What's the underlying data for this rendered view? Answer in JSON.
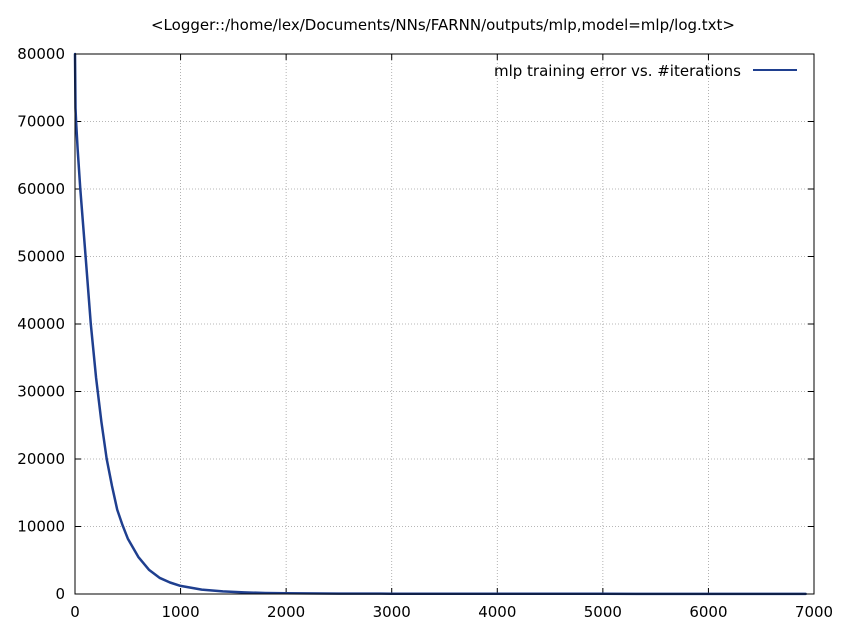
{
  "chart_data": {
    "type": "line",
    "title": "<Logger::/home/lex/Documents/NNs/FARNN/outputs/mlp,model=mlp/log.txt>",
    "xlabel": "",
    "ylabel": "",
    "xlim": [
      0,
      7000
    ],
    "ylim": [
      0,
      80000
    ],
    "x_ticks": [
      0,
      1000,
      2000,
      3000,
      4000,
      5000,
      6000,
      7000
    ],
    "y_ticks": [
      0,
      10000,
      20000,
      30000,
      40000,
      50000,
      60000,
      70000,
      80000
    ],
    "grid": true,
    "legend_position": "top-right",
    "series": [
      {
        "name": "mlp training error vs. #iterations",
        "color": "#1f3f8f",
        "x": [
          0,
          5,
          10,
          25,
          50,
          100,
          150,
          200,
          250,
          300,
          350,
          400,
          450,
          500,
          600,
          700,
          800,
          900,
          1000,
          1200,
          1400,
          1600,
          1800,
          2000,
          2500,
          3000,
          4000,
          5000,
          6000,
          6920
        ],
        "y": [
          80000,
          72000,
          70000,
          66000,
          60000,
          50000,
          40000,
          32000,
          25500,
          20000,
          16000,
          12500,
          10200,
          8200,
          5500,
          3600,
          2400,
          1700,
          1200,
          650,
          380,
          230,
          150,
          100,
          60,
          40,
          30,
          25,
          20,
          20
        ]
      }
    ]
  }
}
